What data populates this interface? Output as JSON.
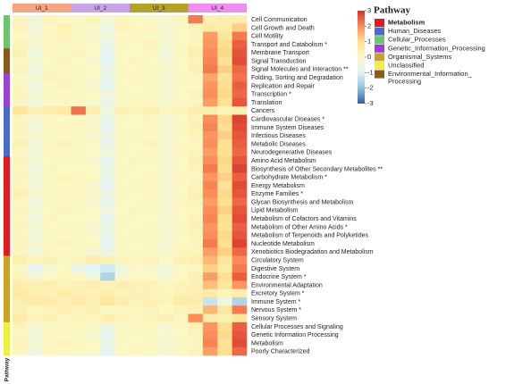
{
  "chart_data": {
    "type": "heatmap",
    "legend_title": "Pathway",
    "row_annotation_label": "Pathway",
    "colorscale_lim": [
      -3,
      3
    ],
    "colorscale_ticks": [
      -3,
      -2,
      -1,
      0,
      1,
      2,
      3
    ],
    "colorscale_colors": [
      "#3b5aa8",
      "#91bfdb",
      "#e0f3f8",
      "#fbf8c4",
      "#fee090",
      "#fc8d59",
      "#d73027"
    ],
    "groups": [
      {
        "name": "UI_1",
        "color": "#f4a582"
      },
      {
        "name": "UI_2",
        "color": "#c9a2ea"
      },
      {
        "name": "UI_3",
        "color": "#b5a22a"
      },
      {
        "name": "UI_4",
        "color": "#f08ef0"
      }
    ],
    "pathways": [
      {
        "name": [
          "Metabolism"
        ],
        "color": "#e41a1c",
        "bold": true
      },
      {
        "name": [
          "Human_Diseases"
        ],
        "color": "#4a6bc9"
      },
      {
        "name": [
          "Cellular_Processes"
        ],
        "color": "#6cc46c"
      },
      {
        "name": [
          "Genetic_Information_Processing"
        ],
        "color": "#9b3fd6"
      },
      {
        "name": [
          "Organismal_Systems"
        ],
        "color": "#c9a227"
      },
      {
        "name": [
          "Unclassified"
        ],
        "color": "#f0f03c"
      },
      {
        "name": [
          "Environmental_Information_",
          "Processing"
        ],
        "color": "#8b5a1a"
      }
    ],
    "rows": [
      {
        "label": "Cell Communication",
        "pathway": 2,
        "values": [
          0.1,
          -0.4,
          0.2,
          0,
          0,
          0.2,
          -0.3,
          0.1,
          0,
          0,
          -0.2,
          0.1,
          2.2,
          0.3,
          0.5,
          0.4
        ]
      },
      {
        "label": "Cell Growth and Death",
        "pathway": 2,
        "values": [
          0.2,
          -0.5,
          0,
          0.3,
          0.1,
          -0.1,
          -0.6,
          0.2,
          0,
          0.1,
          -0.3,
          0,
          0.2,
          0.6,
          0.5,
          1.2
        ]
      },
      {
        "label": "Cell Motility",
        "pathway": 2,
        "values": [
          0,
          -0.3,
          0.1,
          0.2,
          0,
          -0.2,
          -0.5,
          0,
          0.1,
          0,
          -0.2,
          0,
          0.1,
          1.8,
          0.8,
          2.2
        ]
      },
      {
        "label": "Transport and Catabolism *",
        "pathway": 2,
        "values": [
          0.2,
          -0.2,
          0,
          0.1,
          0.1,
          0,
          -0.7,
          0.1,
          0,
          0.2,
          -0.3,
          0,
          0.2,
          1.9,
          1,
          2.5
        ]
      },
      {
        "label": "Membrane Transport",
        "pathway": 6,
        "values": [
          0.3,
          -0.5,
          0.1,
          0,
          0.2,
          -0.1,
          -0.8,
          0,
          0,
          0.1,
          -0.4,
          0.1,
          0.4,
          2,
          1.1,
          2.6
        ]
      },
      {
        "label": "Signal Transduction",
        "pathway": 6,
        "values": [
          0.1,
          -0.3,
          0,
          0.2,
          0,
          -0.2,
          -0.9,
          0,
          0.1,
          0,
          -0.3,
          0,
          0.2,
          2.1,
          0.9,
          2.7
        ]
      },
      {
        "label": "Signal Molecules and Interaction **",
        "pathway": 6,
        "values": [
          0.2,
          -0.4,
          0.1,
          0,
          0.1,
          0,
          -0.6,
          0.1,
          0,
          0.1,
          -0.2,
          0,
          0.3,
          2.2,
          1.2,
          2.4
        ]
      },
      {
        "label": "Folding, Sorting and Degradation",
        "pathway": 3,
        "values": [
          0,
          -0.3,
          0.2,
          0.1,
          0,
          -0.1,
          -0.7,
          0,
          0.1,
          0,
          -0.3,
          0.1,
          0.1,
          1.7,
          0.9,
          2.3
        ]
      },
      {
        "label": "Replication and Repair",
        "pathway": 3,
        "values": [
          0.1,
          -0.5,
          0,
          0.2,
          0.1,
          -0.2,
          -0.8,
          0,
          0,
          0.1,
          -0.2,
          0,
          0,
          1.9,
          1,
          2.5
        ]
      },
      {
        "label": "Transcription *",
        "pathway": 3,
        "values": [
          0.2,
          -0.3,
          0.1,
          0,
          0,
          0,
          -0.5,
          0.1,
          0,
          0,
          -0.3,
          0,
          0.2,
          2,
          1.1,
          2.4
        ]
      },
      {
        "label": "Translation",
        "pathway": 3,
        "values": [
          0.1,
          -0.4,
          0,
          0.1,
          0.1,
          -0.1,
          -0.6,
          0,
          0.1,
          0.1,
          -0.2,
          0,
          0.1,
          1.8,
          0.9,
          2.6
        ]
      },
      {
        "label": "Cancers",
        "pathway": 1,
        "values": [
          0.8,
          0.3,
          0.5,
          0.6,
          2.3,
          0.4,
          -0.4,
          0.3,
          0.2,
          0.3,
          0.1,
          0.2,
          0.5,
          0.4,
          0.2,
          0.3
        ]
      },
      {
        "label": "Cardiovascular Diseases *",
        "pathway": 1,
        "values": [
          0.1,
          -0.3,
          0.1,
          0,
          0,
          -0.2,
          -0.7,
          0,
          0,
          0.1,
          -0.3,
          0,
          0.2,
          2,
          1.1,
          2.8
        ]
      },
      {
        "label": "Immune System Diseases",
        "pathway": 1,
        "values": [
          0.2,
          -0.4,
          0,
          0.1,
          0.1,
          -0.1,
          -0.8,
          0,
          0,
          0.1,
          -0.3,
          0.1,
          0.3,
          2.1,
          1,
          2.7
        ]
      },
      {
        "label": "Infectious Diseases",
        "pathway": 1,
        "values": [
          0.1,
          -0.2,
          0.1,
          0,
          0,
          -0.2,
          -0.6,
          0.1,
          0.1,
          0,
          -0.2,
          0,
          0.2,
          1.9,
          1.2,
          2.6
        ]
      },
      {
        "label": "Metabolic Diseases",
        "pathway": 1,
        "values": [
          0.3,
          -0.3,
          0,
          0.2,
          0.1,
          0,
          -0.7,
          0,
          0,
          0.2,
          -0.3,
          0,
          0.1,
          2,
          0.9,
          2.5
        ]
      },
      {
        "label": "Neurodegenerative Diseases",
        "pathway": 1,
        "values": [
          0.1,
          -0.4,
          0.1,
          0,
          0,
          -0.1,
          -0.5,
          0.1,
          0,
          0,
          -0.2,
          0.1,
          0.2,
          1.8,
          1,
          2.4
        ]
      },
      {
        "label": "Amino Acid Metabolism",
        "pathway": 0,
        "values": [
          0.2,
          -0.3,
          0,
          0.1,
          0.1,
          -0.2,
          -0.8,
          0,
          0.1,
          0.1,
          -0.3,
          0,
          0.3,
          2,
          1.1,
          2.6
        ]
      },
      {
        "label": "Biosynthesis of Other Secondary Metabolites **",
        "pathway": 0,
        "values": [
          0.1,
          -0.5,
          0.1,
          0,
          0,
          -0.1,
          -0.6,
          0.1,
          0,
          0,
          -0.2,
          0,
          0.2,
          2.2,
          1,
          2.8
        ]
      },
      {
        "label": "Carbohydrate Metabolism *",
        "pathway": 0,
        "values": [
          0.2,
          -0.3,
          0,
          0.2,
          0.1,
          0,
          -0.7,
          0,
          0,
          0.1,
          -0.3,
          0.1,
          0.1,
          1.9,
          1.2,
          2.5
        ]
      },
      {
        "label": "Energy Metabolism",
        "pathway": 0,
        "values": [
          0.1,
          -0.4,
          0.1,
          0,
          0,
          -0.2,
          -0.8,
          0,
          0.1,
          0,
          -0.2,
          0,
          0.2,
          2.1,
          0.9,
          2.7
        ]
      },
      {
        "label": "Enzyme Families *",
        "pathway": 0,
        "values": [
          0.3,
          -0.2,
          0,
          0.1,
          0.1,
          -0.1,
          -0.6,
          0.1,
          0,
          0.1,
          -0.3,
          0,
          0.3,
          2,
          1.1,
          2.6
        ]
      },
      {
        "label": "Glycan Biosynthesis and Metabolism",
        "pathway": 0,
        "values": [
          0.1,
          -0.4,
          0.1,
          0,
          0,
          -0.2,
          -0.7,
          0,
          0,
          0,
          -0.2,
          0.1,
          0.2,
          1.8,
          1,
          2.4
        ]
      },
      {
        "label": "Lipid Metabolism",
        "pathway": 0,
        "values": [
          0.2,
          -0.3,
          0,
          0.2,
          0.1,
          0,
          -0.5,
          0,
          0.1,
          0.1,
          -0.3,
          0,
          0.1,
          2,
          1.2,
          2.6
        ]
      },
      {
        "label": "Metabolism of Cofactors and Vitamins",
        "pathway": 0,
        "values": [
          0.1,
          -0.5,
          0.1,
          0,
          0,
          -0.1,
          -0.8,
          0.1,
          0,
          0,
          -0.2,
          0,
          0.2,
          2.1,
          1,
          2.7
        ]
      },
      {
        "label": "Metabolism of Other Amino Acids *",
        "pathway": 0,
        "values": [
          0.2,
          -0.3,
          0,
          0.1,
          0.1,
          -0.2,
          -0.6,
          0,
          0,
          0.1,
          -0.3,
          0.1,
          0.3,
          1.9,
          0.9,
          2.5
        ]
      },
      {
        "label": "Metabolism of Terpenoids and Polyketides",
        "pathway": 0,
        "values": [
          0.1,
          -0.4,
          0.1,
          0,
          0,
          -0.1,
          -0.7,
          0,
          0.1,
          0,
          -0.2,
          0,
          0.2,
          2,
          1.1,
          2.6
        ]
      },
      {
        "label": "Nucleotide Metabolism",
        "pathway": 0,
        "values": [
          0.2,
          -0.3,
          0,
          0.2,
          0.1,
          0,
          -0.8,
          0.1,
          0,
          0.1,
          -0.3,
          0,
          0.1,
          2.2,
          1,
          2.8
        ]
      },
      {
        "label": "Xenobiotics Biodegradation and Metabolism",
        "pathway": 0,
        "values": [
          0.1,
          -0.4,
          0.1,
          0,
          0,
          -0.2,
          -0.6,
          0,
          0,
          0,
          -0.2,
          0.1,
          0.2,
          1.8,
          1.2,
          2.4
        ]
      },
      {
        "label": "Circulatory System",
        "pathway": 4,
        "values": [
          0.4,
          0.2,
          0.3,
          0.1,
          0.2,
          0.5,
          0.3,
          0.2,
          0.1,
          0.2,
          0,
          0.3,
          0.4,
          1.5,
          0.8,
          2
        ]
      },
      {
        "label": "Digestive System",
        "pathway": 4,
        "values": [
          0.1,
          -0.8,
          -0.3,
          0,
          -0.6,
          -0.9,
          -1.2,
          -0.5,
          0,
          -0.2,
          -0.4,
          0,
          0.1,
          1.2,
          0.6,
          2.2
        ]
      },
      {
        "label": "Endocrine System *",
        "pathway": 4,
        "values": [
          0.2,
          -0.3,
          0,
          0.1,
          0,
          -0.4,
          -1.6,
          -0.2,
          0,
          0,
          -0.3,
          0,
          0.3,
          1.8,
          1,
          2.5
        ]
      },
      {
        "label": "Environmental Adaptation",
        "pathway": 4,
        "values": [
          0.5,
          0.3,
          0.4,
          0.2,
          0.3,
          0.5,
          0.2,
          0.4,
          0.2,
          0.3,
          0.1,
          0.2,
          0.3,
          1.4,
          0.8,
          1.9
        ]
      },
      {
        "label": "Excretory System *",
        "pathway": 4,
        "values": [
          0.6,
          0.4,
          0.3,
          0.5,
          0.4,
          0.3,
          0.5,
          0.2,
          0.3,
          0.2,
          0.1,
          0.3,
          0.4,
          0.6,
          0.2,
          0.5
        ]
      },
      {
        "label": "Immune System *",
        "pathway": 4,
        "values": [
          0.4,
          0.6,
          0.5,
          0.3,
          0.6,
          0.4,
          0.7,
          0.5,
          0.2,
          0.3,
          0.2,
          0.6,
          0.5,
          -1.3,
          -0.5,
          -1.6
        ]
      },
      {
        "label": "Nervous System *",
        "pathway": 4,
        "values": [
          0.3,
          0.1,
          0.2,
          0.4,
          0.2,
          0.3,
          0,
          0.1,
          0.1,
          0.2,
          0,
          0.2,
          0.3,
          1.5,
          0.7,
          2.2
        ]
      },
      {
        "label": "Sensory System",
        "pathway": 4,
        "values": [
          0.6,
          0.2,
          0.3,
          0.1,
          0.2,
          0.1,
          0.4,
          0.2,
          0.1,
          0.2,
          0.3,
          0.1,
          2,
          0.5,
          0.3,
          0.8
        ]
      },
      {
        "label": "Cellular Processes and Signaling",
        "pathway": 5,
        "values": [
          0.2,
          -0.3,
          0,
          0.1,
          0.1,
          -0.1,
          -0.5,
          0,
          0.1,
          0.1,
          -0.3,
          0,
          0.3,
          1.9,
          1,
          2.5
        ]
      },
      {
        "label": "Genetic Information Processing",
        "pathway": 5,
        "values": [
          0.1,
          -0.4,
          0.1,
          0,
          0,
          -0.2,
          -0.7,
          0.1,
          0,
          0,
          -0.2,
          0,
          0.2,
          2,
          1.1,
          2.6
        ]
      },
      {
        "label": "Metabolism",
        "pathway": 5,
        "values": [
          0.2,
          -0.3,
          0,
          0.2,
          0.1,
          0,
          -0.6,
          0,
          0,
          0.1,
          -0.3,
          0.1,
          0.1,
          2.1,
          0.9,
          2.7
        ]
      },
      {
        "label": "Poorly Characterized",
        "pathway": 5,
        "values": [
          0.1,
          -0.5,
          0.1,
          0,
          0,
          -0.1,
          -0.8,
          0,
          0.1,
          0,
          -0.2,
          0,
          0.2,
          1.8,
          1,
          2.4
        ]
      }
    ]
  }
}
